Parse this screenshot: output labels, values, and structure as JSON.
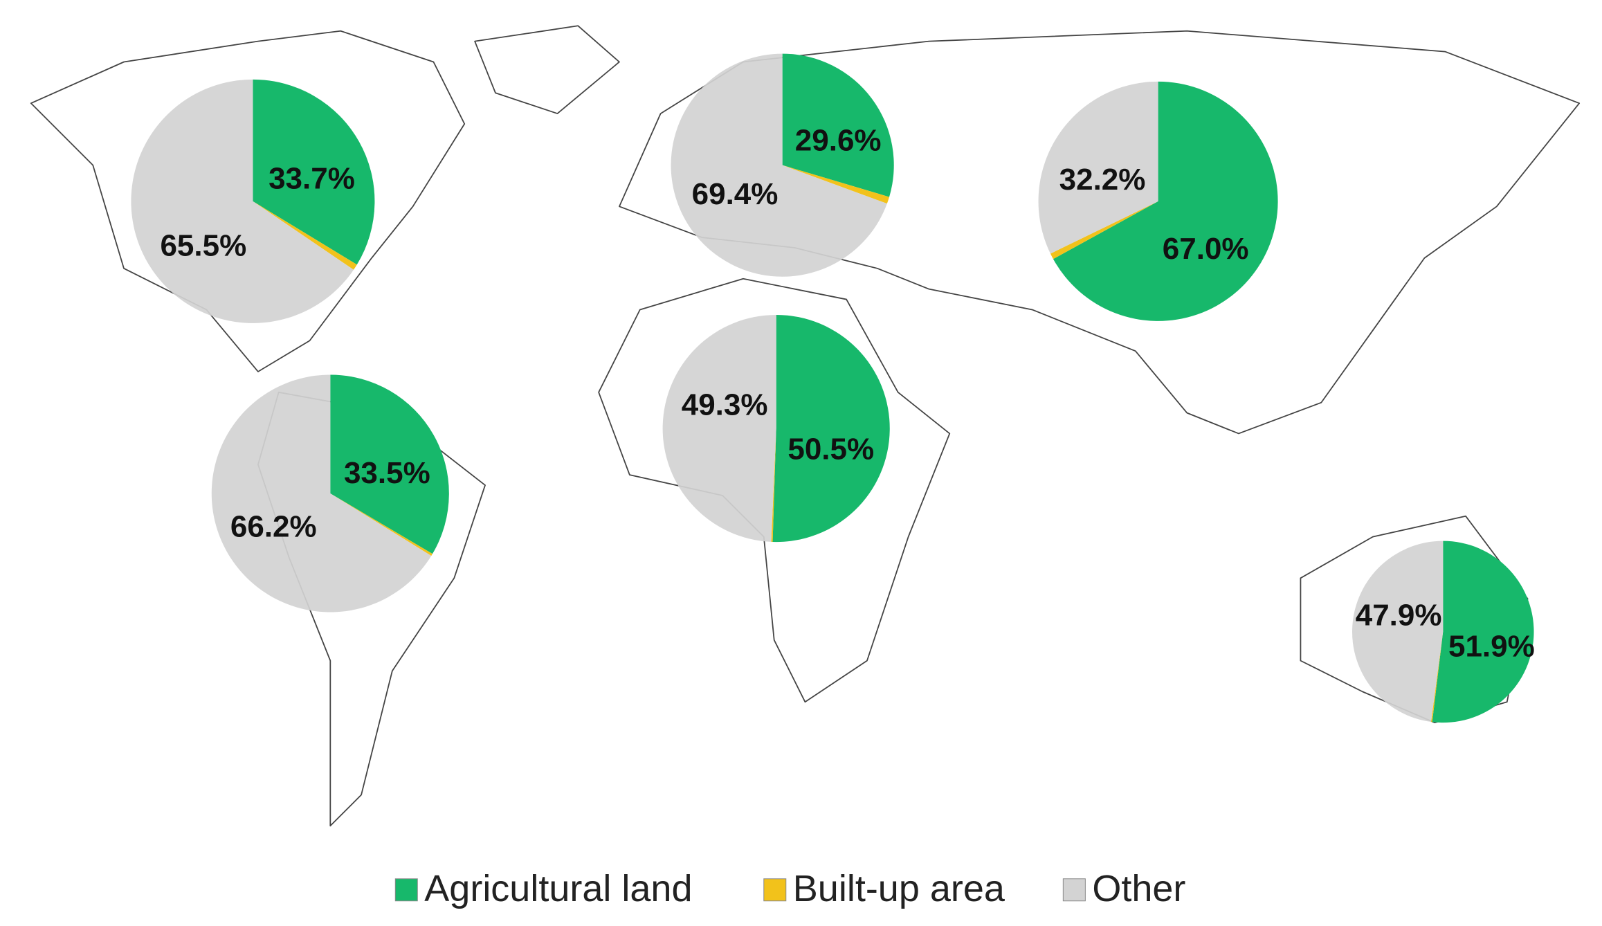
{
  "chart_data": {
    "type": "pie",
    "categories": [
      "Agricultural land",
      "Built-up area",
      "Other"
    ],
    "colors": [
      "#17b86b",
      "#f2c21b",
      "#d3d3d3"
    ],
    "pies": [
      {
        "values": [
          33.7,
          0.8,
          65.5
        ],
        "value_labels": [
          "33.7%",
          null,
          "65.5%"
        ]
      },
      {
        "values": [
          29.6,
          1.0,
          69.4
        ],
        "value_labels": [
          "29.6%",
          null,
          "69.4%"
        ]
      },
      {
        "values": [
          67.0,
          0.8,
          32.2
        ],
        "value_labels": [
          "67.0%",
          null,
          "32.2%"
        ]
      },
      {
        "values": [
          33.5,
          0.3,
          66.2
        ],
        "value_labels": [
          "33.5%",
          null,
          "66.2%"
        ]
      },
      {
        "values": [
          50.5,
          0.2,
          49.3
        ],
        "value_labels": [
          "50.5%",
          null,
          "49.3%"
        ]
      },
      {
        "values": [
          51.9,
          0.2,
          47.9
        ],
        "value_labels": [
          "51.9%",
          null,
          "47.9%"
        ]
      }
    ]
  }
}
